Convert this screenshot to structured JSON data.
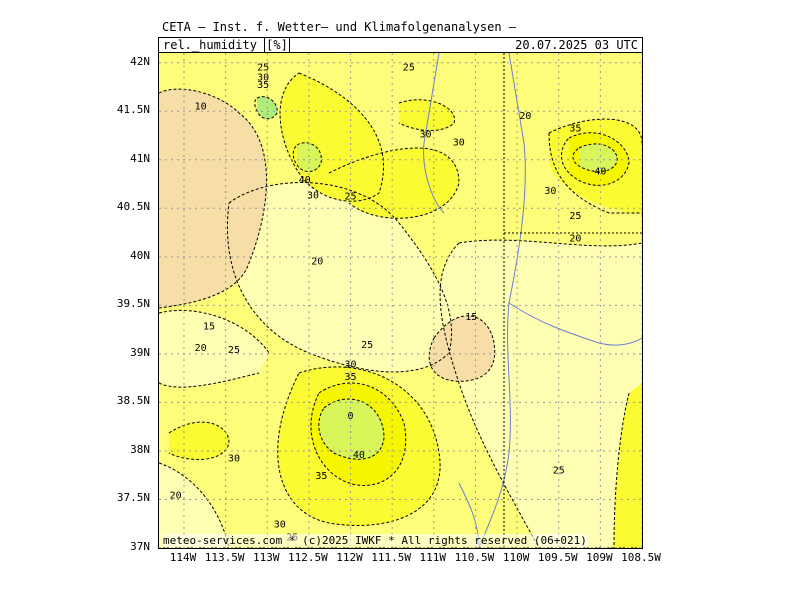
{
  "header": {
    "title": "CETA — Inst. f. Wetter— und Klimafolgenanalysen —",
    "parameter": "rel._humidity",
    "unit": "%",
    "datetime": "20.07.2025 03 UTC"
  },
  "footer": {
    "copyright": "meteo-services.com * (c)2025 IWKF * All rights reserved (06+021)"
  },
  "axes": {
    "lat_labels": [
      "42N",
      "41.5N",
      "41N",
      "40.5N",
      "40N",
      "39.5N",
      "39N",
      "38.5N",
      "38N",
      "37.5N",
      "37N"
    ],
    "lon_labels": [
      "114W",
      "113.5W",
      "113W",
      "112.5W",
      "112W",
      "111.5W",
      "111W",
      "110.5W",
      "110W",
      "109.5W",
      "109W",
      "108.5W"
    ]
  },
  "contour_labels": [
    {
      "text": "25",
      "lon": -113.05,
      "lat": 41.95
    },
    {
      "text": "30",
      "lon": -113.05,
      "lat": 41.85
    },
    {
      "text": "35",
      "lon": -113.05,
      "lat": 41.77
    },
    {
      "text": "10",
      "lon": -113.8,
      "lat": 41.55
    },
    {
      "text": "40",
      "lon": -112.55,
      "lat": 40.79
    },
    {
      "text": "30",
      "lon": -112.45,
      "lat": 40.63
    },
    {
      "text": "25",
      "lon": -112.0,
      "lat": 40.62
    },
    {
      "text": "25",
      "lon": -111.3,
      "lat": 41.95
    },
    {
      "text": "30",
      "lon": -111.1,
      "lat": 41.26
    },
    {
      "text": "30",
      "lon": -110.7,
      "lat": 41.18
    },
    {
      "text": "20",
      "lon": -109.9,
      "lat": 41.45
    },
    {
      "text": "35",
      "lon": -109.3,
      "lat": 41.32
    },
    {
      "text": "40",
      "lon": -109.0,
      "lat": 40.88
    },
    {
      "text": "30",
      "lon": -109.6,
      "lat": 40.68
    },
    {
      "text": "25",
      "lon": -109.3,
      "lat": 40.42
    },
    {
      "text": "20",
      "lon": -109.3,
      "lat": 40.19
    },
    {
      "text": "20",
      "lon": -112.4,
      "lat": 39.95
    },
    {
      "text": "15",
      "lon": -113.7,
      "lat": 39.28
    },
    {
      "text": "20",
      "lon": -113.8,
      "lat": 39.06
    },
    {
      "text": "25",
      "lon": -113.4,
      "lat": 39.04
    },
    {
      "text": "25",
      "lon": -111.8,
      "lat": 39.09
    },
    {
      "text": "15",
      "lon": -110.55,
      "lat": 39.38
    },
    {
      "text": "30",
      "lon": -112.0,
      "lat": 38.89
    },
    {
      "text": "35",
      "lon": -112.0,
      "lat": 38.76
    },
    {
      "text": "0",
      "lon": -112.0,
      "lat": 38.36
    },
    {
      "text": "40",
      "lon": -111.9,
      "lat": 37.96
    },
    {
      "text": "30",
      "lon": -113.4,
      "lat": 37.92
    },
    {
      "text": "35",
      "lon": -112.35,
      "lat": 37.74
    },
    {
      "text": "20",
      "lon": -114.1,
      "lat": 37.54
    },
    {
      "text": "30",
      "lon": -112.85,
      "lat": 37.24
    },
    {
      "text": "25",
      "lon": -112.7,
      "lat": 37.11
    },
    {
      "text": "25",
      "lon": -109.5,
      "lat": 37.8
    }
  ],
  "colors": {
    "h10": "#f7dea6",
    "h15": "#fbe7a2",
    "h20": "#ffffb3",
    "h25": "#fdfd7a",
    "h30": "#fbfb33",
    "h35": "#f6f600",
    "h40": "#d8f55a",
    "h45": "#b0ec7a",
    "river": "#6d7fd1",
    "border": "#000000"
  }
}
